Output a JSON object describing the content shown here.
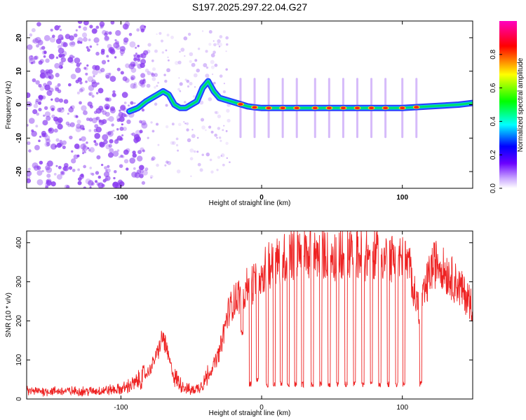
{
  "title": "S197.2025.297.22.04.G27",
  "colors": {
    "snr_line": "#ee2222",
    "spectrogram_cloud": "#8a3cf0",
    "ridge_peak": "#ff1a1a",
    "ridge_high": "#ffd200",
    "ridge_mid": "#00e060",
    "ridge_low": "#00c8e6",
    "ridge_edge": "#2a3cff"
  },
  "chart_data": [
    {
      "type": "heatmap",
      "name": "spectrogram",
      "xlabel": "Height of straight line (km)",
      "ylabel": "Frequency (Hz)",
      "xlim": [
        -167,
        150
      ],
      "ylim": [
        -25,
        25
      ],
      "x_ticks": [
        -100,
        0,
        100
      ],
      "y_ticks": [
        -20,
        -10,
        0,
        10,
        20
      ],
      "colorbar": {
        "label": "Normalized spectral amplitude",
        "range": [
          0,
          1
        ],
        "ticks": [
          "0.0",
          "0.2",
          "0.4",
          "0.6",
          "0.8"
        ],
        "colormap": [
          "#ffffff",
          "#6a00ff",
          "#0000ff",
          "#00ffff",
          "#00ff00",
          "#ffff00",
          "#ff0000",
          "#ff00c0"
        ]
      },
      "ridge": {
        "x": [
          -94,
          -88,
          -82,
          -78,
          -74,
          -70,
          -66,
          -62,
          -58,
          -54,
          -50,
          -46,
          -42,
          -38,
          -34,
          -30,
          -26,
          -22,
          -18,
          -14,
          -10,
          -5,
          0,
          10,
          20,
          40,
          60,
          80,
          100,
          120,
          140,
          150
        ],
        "y": [
          -2,
          -1,
          1,
          2,
          3,
          4,
          3,
          0,
          -1,
          -1,
          0,
          1,
          5,
          7,
          4,
          2,
          1.5,
          1,
          0.5,
          0,
          -0.5,
          -0.8,
          -1,
          -1,
          -1,
          -1,
          -1,
          -1,
          -1,
          -0.5,
          0,
          0.5
        ]
      },
      "peaks_x": [
        -15,
        -5,
        5,
        15,
        25,
        38,
        48,
        58,
        68,
        78,
        88,
        100,
        110
      ]
    },
    {
      "type": "line",
      "name": "snr",
      "xlabel": "Height of straight line (km)",
      "ylabel": "SNR (10 * v/v)",
      "xlim": [
        -167,
        150
      ],
      "ylim": [
        0,
        430
      ],
      "x_ticks": [
        -100,
        0,
        100
      ],
      "y_ticks": [
        0,
        100,
        200,
        300,
        400
      ],
      "envelope": {
        "x": [
          -167,
          -120,
          -100,
          -90,
          -80,
          -75,
          -70,
          -65,
          -62,
          -58,
          -55,
          -50,
          -45,
          -40,
          -35,
          -30,
          -27,
          -24,
          -20,
          -15,
          -10,
          -5,
          0,
          5,
          10,
          15,
          20,
          25,
          30,
          40,
          50,
          60,
          70,
          80,
          90,
          100,
          105,
          110,
          112,
          115,
          120,
          125,
          130,
          140,
          150
        ],
        "y": [
          20,
          20,
          25,
          40,
          70,
          110,
          160,
          90,
          55,
          40,
          30,
          22,
          28,
          50,
          80,
          120,
          170,
          220,
          250,
          270,
          290,
          300,
          320,
          340,
          350,
          360,
          365,
          370,
          372,
          372,
          370,
          368,
          368,
          368,
          365,
          355,
          340,
          250,
          230,
          260,
          330,
          355,
          330,
          290,
          240
        ]
      },
      "dropouts": [
        {
          "x": -14,
          "value": 160
        },
        {
          "x": -8,
          "value": 30
        },
        {
          "x": -3,
          "value": 40
        },
        {
          "x": 4,
          "value": 30
        },
        {
          "x": 9,
          "value": 30
        },
        {
          "x": 14,
          "value": 30
        },
        {
          "x": 19,
          "value": 30
        },
        {
          "x": 24,
          "value": 30
        },
        {
          "x": 29,
          "value": 30
        },
        {
          "x": 36,
          "value": 30
        },
        {
          "x": 42,
          "value": 30
        },
        {
          "x": 48,
          "value": 30
        },
        {
          "x": 54,
          "value": 30
        },
        {
          "x": 60,
          "value": 30
        },
        {
          "x": 66,
          "value": 30
        },
        {
          "x": 72,
          "value": 30
        },
        {
          "x": 78,
          "value": 30
        },
        {
          "x": 84,
          "value": 30
        },
        {
          "x": 90,
          "value": 30
        },
        {
          "x": 96,
          "value": 30
        },
        {
          "x": 101,
          "value": 30
        },
        {
          "x": 113,
          "value": 30
        }
      ]
    }
  ]
}
